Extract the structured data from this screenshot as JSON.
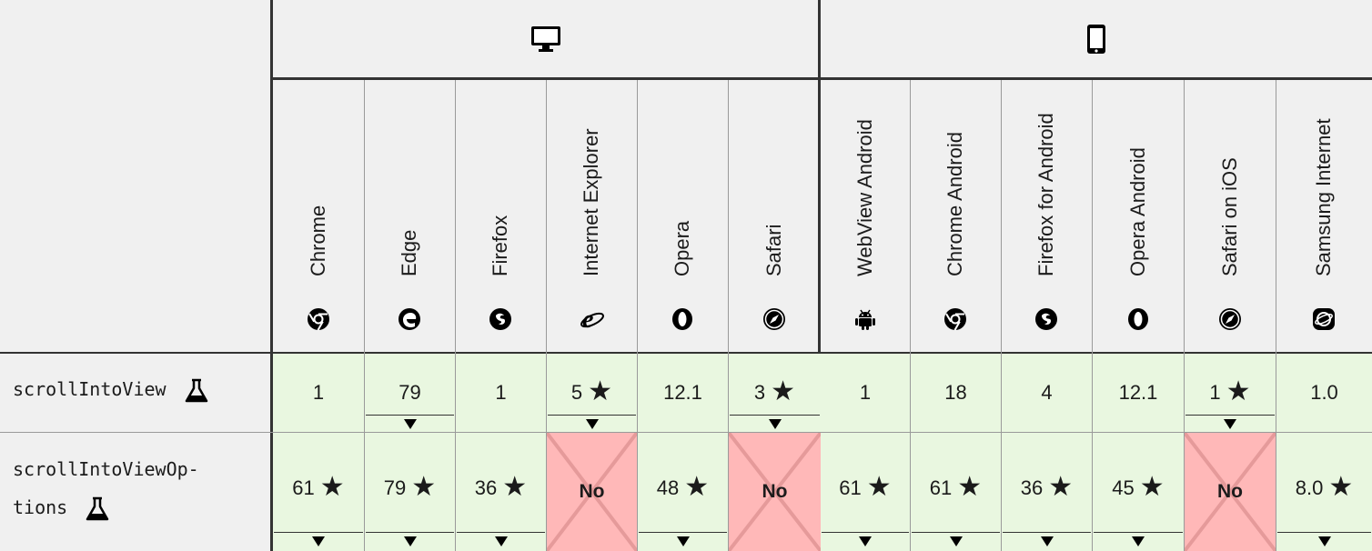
{
  "groups": [
    {
      "name": "desktop",
      "icon": "desktop-icon"
    },
    {
      "name": "mobile",
      "icon": "mobile-icon"
    }
  ],
  "browsers": [
    {
      "label": "Chrome",
      "icon": "chrome-icon"
    },
    {
      "label": "Edge",
      "icon": "edge-icon"
    },
    {
      "label": "Firefox",
      "icon": "firefox-icon"
    },
    {
      "label": "Internet Explorer",
      "icon": "internet-explorer-icon"
    },
    {
      "label": "Opera",
      "icon": "opera-icon"
    },
    {
      "label": "Safari",
      "icon": "safari-icon"
    },
    {
      "label": "WebView Android",
      "icon": "android-icon"
    },
    {
      "label": "Chrome Android",
      "icon": "chrome-icon"
    },
    {
      "label": "Firefox for Android",
      "icon": "firefox-icon"
    },
    {
      "label": "Opera Android",
      "icon": "opera-icon"
    },
    {
      "label": "Safari on iOS",
      "icon": "safari-icon"
    },
    {
      "label": "Samsung Internet",
      "icon": "samsung-internet-icon"
    }
  ],
  "features": [
    {
      "name_lines": [
        "scrollIntoView"
      ],
      "cells": [
        {
          "value": "1",
          "status": "yes"
        },
        {
          "value": "79",
          "status": "yes",
          "expand": true
        },
        {
          "value": "1",
          "status": "yes"
        },
        {
          "value": "5",
          "status": "yes",
          "star": true,
          "expand": true
        },
        {
          "value": "12.1",
          "status": "yes"
        },
        {
          "value": "3",
          "status": "yes",
          "star": true,
          "expand": true
        },
        {
          "value": "1",
          "status": "yes"
        },
        {
          "value": "18",
          "status": "yes"
        },
        {
          "value": "4",
          "status": "yes"
        },
        {
          "value": "12.1",
          "status": "yes"
        },
        {
          "value": "1",
          "status": "yes",
          "star": true,
          "expand": true
        },
        {
          "value": "1.0",
          "status": "yes"
        }
      ]
    },
    {
      "name_lines": [
        "scrollIntoViewOp-",
        "tions"
      ],
      "cells": [
        {
          "value": "61",
          "status": "yes",
          "star": true,
          "expand": true
        },
        {
          "value": "79",
          "status": "yes",
          "star": true,
          "expand": true
        },
        {
          "value": "36",
          "status": "yes",
          "star": true,
          "expand": true
        },
        {
          "value": "No",
          "status": "no"
        },
        {
          "value": "48",
          "status": "yes",
          "star": true,
          "expand": true
        },
        {
          "value": "No",
          "status": "no"
        },
        {
          "value": "61",
          "status": "yes",
          "star": true,
          "expand": true
        },
        {
          "value": "61",
          "status": "yes",
          "star": true,
          "expand": true
        },
        {
          "value": "36",
          "status": "yes",
          "star": true,
          "expand": true
        },
        {
          "value": "45",
          "status": "yes",
          "star": true,
          "expand": true
        },
        {
          "value": "No",
          "status": "no"
        },
        {
          "value": "8.0",
          "status": "yes",
          "star": true,
          "expand": true
        }
      ]
    }
  ],
  "star_glyph": "★",
  "expand_glyph": "▼"
}
